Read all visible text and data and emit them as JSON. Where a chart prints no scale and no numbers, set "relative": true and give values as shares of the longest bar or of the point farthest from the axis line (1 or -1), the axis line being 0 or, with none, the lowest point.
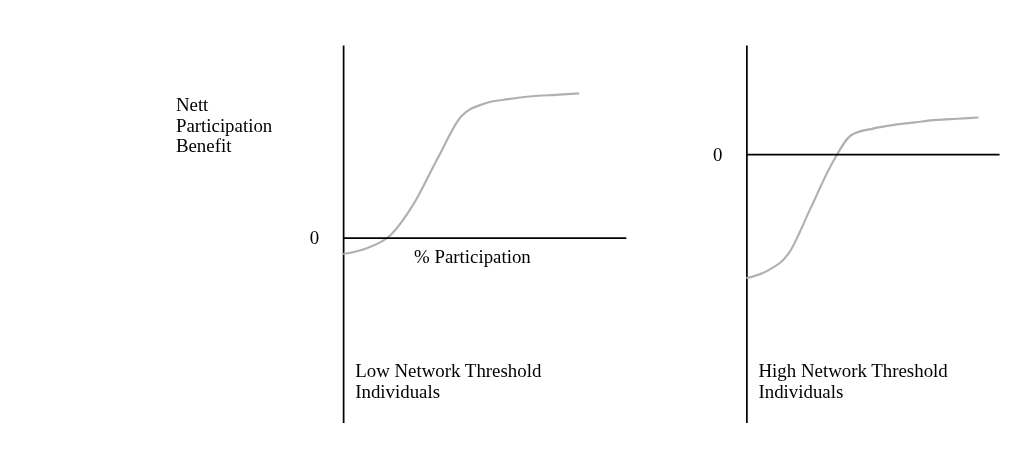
{
  "chart_data": [
    {
      "type": "line",
      "title": "Low Network Threshold Individuals",
      "ylabel": "Nett Participation Benefit",
      "xlabel": "% Participation",
      "relative": true,
      "grid": false,
      "categories": [
        null,
        null,
        null,
        null,
        null,
        null,
        null,
        null,
        null,
        null,
        null,
        null,
        null
      ],
      "series": [
        {
          "color": "#b0b0b0",
          "values": [
            -0.11,
            -0.07,
            0.02,
            0.24,
            0.55,
            0.84,
            0.93,
            0.96,
            0.98,
            0.99,
            1,
            null,
            null
          ]
        }
      ],
      "ref_lines": [
        {
          "axis": "y",
          "value": 0,
          "label": "0",
          "color": "#000000"
        }
      ]
    },
    {
      "type": "line",
      "title": "High Network Threshold Individuals",
      "relative": true,
      "grid": false,
      "categories": [
        null,
        null,
        null,
        null,
        null,
        null,
        null,
        null,
        null,
        null,
        null,
        null,
        null
      ],
      "series": [
        {
          "color": "#b0b0b0",
          "values": [
            -1,
            -0.94,
            -0.8,
            -0.45,
            -0.09,
            0.16,
            0.21,
            0.24,
            0.26,
            0.28,
            0.29,
            0.3,
            null
          ]
        }
      ],
      "ref_lines": [
        {
          "axis": "y",
          "value": 0,
          "label": "0",
          "color": "#000000"
        }
      ]
    }
  ]
}
